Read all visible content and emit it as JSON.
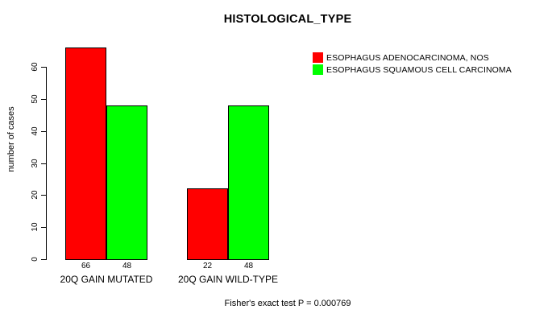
{
  "chart_data": {
    "type": "bar",
    "title": "HISTOLOGICAL_TYPE",
    "ylabel": "number of cases",
    "xlabel": "",
    "categories": [
      "20Q GAIN MUTATED",
      "20Q GAIN WILD-TYPE"
    ],
    "series": [
      {
        "name": "ESOPHAGUS ADENOCARCINOMA, NOS",
        "color": "#ff0000",
        "values": [
          66,
          22
        ]
      },
      {
        "name": "ESOPHAGUS SQUAMOUS CELL CARCINOMA",
        "color": "#00ff00",
        "values": [
          48,
          48
        ]
      }
    ],
    "bar_value_labels": [
      [
        "66",
        "48"
      ],
      [
        "22",
        "48"
      ]
    ],
    "yticks": [
      "0",
      "10",
      "20",
      "30",
      "40",
      "50",
      "60"
    ],
    "ylim": [
      0,
      66
    ],
    "grid": false,
    "legend_position": "top-right",
    "footnote": "Fisher's exact test P = 0.000769"
  },
  "colors": {
    "background": "#ffffff",
    "axis": "#000000",
    "text": "#000000",
    "series_red": "#ff0000",
    "series_green": "#00ff00"
  }
}
